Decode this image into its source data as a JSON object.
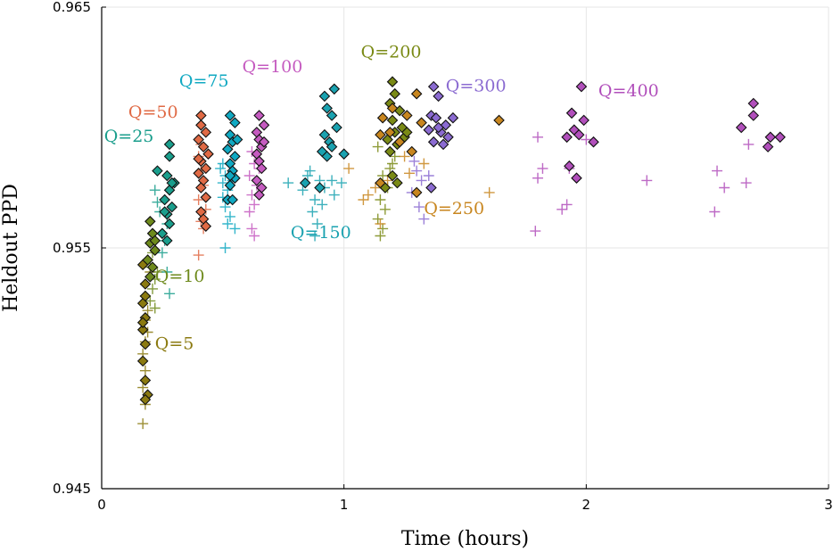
{
  "chart_data": {
    "type": "scatter",
    "title": "",
    "xlabel": "Time (hours)",
    "ylabel": "Heldout PPD",
    "xlim": [
      0,
      3
    ],
    "ylim": [
      0.945,
      0.965
    ],
    "x_ticks": [
      "0",
      "1",
      "2",
      "3"
    ],
    "y_ticks": [
      "0.945",
      "0.955",
      "0.965"
    ],
    "grid": true,
    "legend": "none (inline Q labels)",
    "marker_legend": {
      "diamond": "outlined diamond markers",
      "plus": "plus markers"
    },
    "series": [
      {
        "name": "Q=5",
        "color": "#8b7a10",
        "diamonds": [
          [
            0.17,
            0.9543
          ],
          [
            0.18,
            0.9535
          ],
          [
            0.17,
            0.9527
          ],
          [
            0.18,
            0.9521
          ],
          [
            0.17,
            0.9516
          ],
          [
            0.18,
            0.951
          ],
          [
            0.17,
            0.9503
          ],
          [
            0.18,
            0.9495
          ],
          [
            0.19,
            0.9489
          ],
          [
            0.18,
            0.9487
          ],
          [
            0.18,
            0.953
          ],
          [
            0.17,
            0.9519
          ]
        ],
        "plus": [
          [
            0.17,
            0.9477
          ],
          [
            0.18,
            0.9485
          ],
          [
            0.17,
            0.9492
          ],
          [
            0.18,
            0.9499
          ],
          [
            0.17,
            0.9506
          ],
          [
            0.18,
            0.9511
          ],
          [
            0.19,
            0.9515
          ],
          [
            0.18,
            0.952
          ],
          [
            0.19,
            0.9524
          ],
          [
            0.18,
            0.953
          ],
          [
            0.2,
            0.954
          ],
          [
            0.19,
            0.9545
          ]
        ]
      },
      {
        "name": "Q=10",
        "color": "#6e8a1c",
        "diamonds": [
          [
            0.2,
            0.9561
          ],
          [
            0.21,
            0.9556
          ],
          [
            0.2,
            0.9552
          ],
          [
            0.22,
            0.9549
          ],
          [
            0.19,
            0.9545
          ],
          [
            0.21,
            0.9542
          ],
          [
            0.2,
            0.9538
          ],
          [
            0.22,
            0.9553
          ]
        ],
        "plus": [
          [
            0.21,
            0.9548
          ],
          [
            0.2,
            0.9542
          ],
          [
            0.22,
            0.9537
          ],
          [
            0.21,
            0.9533
          ],
          [
            0.23,
            0.954
          ],
          [
            0.22,
            0.9525
          ],
          [
            0.2,
            0.9528
          ]
        ]
      },
      {
        "name": "Q=25",
        "color": "#1a9e8c",
        "diamonds": [
          [
            0.28,
            0.9593
          ],
          [
            0.28,
            0.9588
          ],
          [
            0.23,
            0.9582
          ],
          [
            0.27,
            0.958
          ],
          [
            0.3,
            0.9577
          ],
          [
            0.28,
            0.9574
          ],
          [
            0.26,
            0.957
          ],
          [
            0.29,
            0.9567
          ],
          [
            0.27,
            0.9564
          ],
          [
            0.28,
            0.956
          ],
          [
            0.25,
            0.9556
          ],
          [
            0.27,
            0.9553
          ],
          [
            0.29,
            0.9577
          ],
          [
            0.26,
            0.9565
          ]
        ],
        "plus": [
          [
            0.22,
            0.9574
          ],
          [
            0.26,
            0.957
          ],
          [
            0.24,
            0.9565
          ],
          [
            0.27,
            0.956
          ],
          [
            0.26,
            0.9553
          ],
          [
            0.25,
            0.9548
          ],
          [
            0.27,
            0.954
          ],
          [
            0.28,
            0.9531
          ],
          [
            0.23,
            0.9569
          ]
        ]
      },
      {
        "name": "Q=50",
        "color": "#e06a45",
        "diamonds": [
          [
            0.41,
            0.9605
          ],
          [
            0.41,
            0.9601
          ],
          [
            0.43,
            0.9598
          ],
          [
            0.4,
            0.9595
          ],
          [
            0.42,
            0.9592
          ],
          [
            0.44,
            0.9589
          ],
          [
            0.41,
            0.9586
          ],
          [
            0.43,
            0.9583
          ],
          [
            0.4,
            0.9581
          ],
          [
            0.42,
            0.9578
          ],
          [
            0.41,
            0.9575
          ],
          [
            0.43,
            0.9571
          ],
          [
            0.41,
            0.9565
          ],
          [
            0.42,
            0.9562
          ],
          [
            0.43,
            0.9559
          ],
          [
            0.4,
            0.9587
          ]
        ],
        "plus": [
          [
            0.4,
            0.9588
          ],
          [
            0.41,
            0.9582
          ],
          [
            0.42,
            0.9576
          ],
          [
            0.4,
            0.957
          ],
          [
            0.43,
            0.9566
          ],
          [
            0.41,
            0.9561
          ],
          [
            0.42,
            0.9558
          ],
          [
            0.4,
            0.9547
          ],
          [
            0.41,
            0.9593
          ]
        ]
      },
      {
        "name": "Q=75",
        "color": "#11a9c2",
        "diamonds": [
          [
            0.53,
            0.9605
          ],
          [
            0.55,
            0.9602
          ],
          [
            0.53,
            0.9597
          ],
          [
            0.54,
            0.9594
          ],
          [
            0.52,
            0.9591
          ],
          [
            0.55,
            0.9588
          ],
          [
            0.53,
            0.9585
          ],
          [
            0.54,
            0.9582
          ],
          [
            0.55,
            0.9579
          ],
          [
            0.53,
            0.9576
          ],
          [
            0.52,
            0.957
          ],
          [
            0.54,
            0.957
          ],
          [
            0.53,
            0.958
          ],
          [
            0.56,
            0.9595
          ]
        ],
        "plus": [
          [
            0.49,
            0.9583
          ],
          [
            0.51,
            0.958
          ],
          [
            0.5,
            0.9577
          ],
          [
            0.52,
            0.9574
          ],
          [
            0.5,
            0.9571
          ],
          [
            0.51,
            0.9567
          ],
          [
            0.53,
            0.9563
          ],
          [
            0.55,
            0.9558
          ],
          [
            0.52,
            0.956
          ],
          [
            0.51,
            0.955
          ],
          [
            0.5,
            0.9585
          ],
          [
            0.54,
            0.9578
          ]
        ]
      },
      {
        "name": "Q=100",
        "color": "#c55bc0",
        "diamonds": [
          [
            0.65,
            0.9605
          ],
          [
            0.67,
            0.9601
          ],
          [
            0.64,
            0.9598
          ],
          [
            0.65,
            0.9595
          ],
          [
            0.66,
            0.9592
          ],
          [
            0.64,
            0.9589
          ],
          [
            0.65,
            0.9586
          ],
          [
            0.66,
            0.9583
          ],
          [
            0.64,
            0.9578
          ],
          [
            0.66,
            0.9575
          ],
          [
            0.65,
            0.9572
          ],
          [
            0.67,
            0.9594
          ]
        ],
        "plus": [
          [
            0.62,
            0.959
          ],
          [
            0.63,
            0.9585
          ],
          [
            0.61,
            0.958
          ],
          [
            0.64,
            0.9576
          ],
          [
            0.62,
            0.9572
          ],
          [
            0.63,
            0.9568
          ],
          [
            0.61,
            0.9565
          ],
          [
            0.62,
            0.9558
          ],
          [
            0.63,
            0.9555
          ],
          [
            0.65,
            0.9583
          ]
        ]
      },
      {
        "name": "Q=150",
        "color": "#1aa2b0",
        "diamonds": [
          [
            0.92,
            0.9613
          ],
          [
            0.96,
            0.9616
          ],
          [
            0.93,
            0.9608
          ],
          [
            0.95,
            0.9605
          ],
          [
            0.92,
            0.9597
          ],
          [
            0.94,
            0.9594
          ],
          [
            0.91,
            0.959
          ],
          [
            0.95,
            0.9592
          ],
          [
            0.93,
            0.9588
          ],
          [
            1.0,
            0.9589
          ],
          [
            0.84,
            0.9577
          ],
          [
            0.9,
            0.9575
          ],
          [
            0.97,
            0.96
          ]
        ],
        "plus": [
          [
            0.77,
            0.9577
          ],
          [
            0.86,
            0.9582
          ],
          [
            0.9,
            0.9578
          ],
          [
            0.83,
            0.9574
          ],
          [
            0.88,
            0.957
          ],
          [
            0.92,
            0.9575
          ],
          [
            0.95,
            0.9578
          ],
          [
            0.87,
            0.9565
          ],
          [
            0.89,
            0.956
          ],
          [
            0.88,
            0.9555
          ],
          [
            0.96,
            0.9572
          ],
          [
            0.99,
            0.9577
          ],
          [
            0.85,
            0.958
          ],
          [
            0.91,
            0.9568
          ]
        ]
      },
      {
        "name": "Q=200",
        "color": "#7a8a15",
        "diamonds": [
          [
            1.2,
            0.9619
          ],
          [
            1.21,
            0.9614
          ],
          [
            1.19,
            0.961
          ],
          [
            1.23,
            0.9607
          ],
          [
            1.2,
            0.9603
          ],
          [
            1.24,
            0.96
          ],
          [
            1.21,
            0.9598
          ],
          [
            1.18,
            0.9595
          ],
          [
            1.22,
            0.9593
          ],
          [
            1.19,
            0.959
          ],
          [
            1.25,
            0.9596
          ],
          [
            1.2,
            0.958
          ],
          [
            1.22,
            0.9577
          ],
          [
            1.17,
            0.9575
          ],
          [
            1.26,
            0.9598
          ]
        ],
        "plus": [
          [
            1.14,
            0.9592
          ],
          [
            1.2,
            0.9585
          ],
          [
            1.16,
            0.958
          ],
          [
            1.18,
            0.9575
          ],
          [
            1.15,
            0.957
          ],
          [
            1.17,
            0.9566
          ],
          [
            1.14,
            0.9562
          ],
          [
            1.16,
            0.9558
          ],
          [
            1.15,
            0.9555
          ],
          [
            1.19,
            0.9583
          ],
          [
            1.21,
            0.9588
          ]
        ]
      },
      {
        "name": "Q=250",
        "color": "#c8861f",
        "diamonds": [
          [
            1.16,
            0.9604
          ],
          [
            1.2,
            0.9608
          ],
          [
            1.26,
            0.9605
          ],
          [
            1.3,
            0.9614
          ],
          [
            1.15,
            0.9597
          ],
          [
            1.23,
            0.9594
          ],
          [
            1.28,
            0.959
          ],
          [
            1.32,
            0.9602
          ],
          [
            1.64,
            0.9603
          ],
          [
            1.3,
            0.9573
          ],
          [
            1.15,
            0.9577
          ],
          [
            1.19,
            0.9598
          ]
        ],
        "plus": [
          [
            1.08,
            0.957
          ],
          [
            1.1,
            0.9572
          ],
          [
            1.13,
            0.9575
          ],
          [
            1.18,
            0.9578
          ],
          [
            1.27,
            0.9581
          ],
          [
            1.33,
            0.9585
          ],
          [
            1.6,
            0.9573
          ],
          [
            1.15,
            0.956
          ],
          [
            1.25,
            0.9588
          ],
          [
            1.02,
            0.9583
          ]
        ]
      },
      {
        "name": "Q=300",
        "color": "#8b6bd1",
        "diamonds": [
          [
            1.37,
            0.9617
          ],
          [
            1.39,
            0.9613
          ],
          [
            1.36,
            0.9605
          ],
          [
            1.42,
            0.9601
          ],
          [
            1.38,
            0.9604
          ],
          [
            1.45,
            0.9604
          ],
          [
            1.35,
            0.9599
          ],
          [
            1.4,
            0.9598
          ],
          [
            1.43,
            0.9596
          ],
          [
            1.37,
            0.9594
          ],
          [
            1.41,
            0.9593
          ],
          [
            1.39,
            0.96
          ],
          [
            1.36,
            0.9575
          ]
        ],
        "plus": [
          [
            1.3,
            0.9582
          ],
          [
            1.32,
            0.9578
          ],
          [
            1.28,
            0.9573
          ],
          [
            1.31,
            0.9567
          ],
          [
            1.33,
            0.9562
          ],
          [
            1.29,
            0.9586
          ],
          [
            1.35,
            0.958
          ]
        ]
      },
      {
        "name": "Q=400",
        "color": "#b14fbb",
        "diamonds": [
          [
            1.98,
            0.9617
          ],
          [
            1.94,
            0.9606
          ],
          [
            1.99,
            0.9603
          ],
          [
            1.95,
            0.9599
          ],
          [
            1.92,
            0.9596
          ],
          [
            1.97,
            0.9597
          ],
          [
            2.03,
            0.9594
          ],
          [
            1.93,
            0.9584
          ],
          [
            1.96,
            0.9579
          ],
          [
            2.69,
            0.961
          ],
          [
            2.69,
            0.9605
          ],
          [
            2.64,
            0.96
          ],
          [
            2.76,
            0.9596
          ],
          [
            2.8,
            0.9596
          ],
          [
            2.75,
            0.9592
          ]
        ],
        "plus": [
          [
            1.8,
            0.9596
          ],
          [
            1.82,
            0.9583
          ],
          [
            1.8,
            0.9579
          ],
          [
            1.93,
            0.9583
          ],
          [
            1.92,
            0.9568
          ],
          [
            1.9,
            0.9566
          ],
          [
            2.0,
            0.9595
          ],
          [
            1.79,
            0.9557
          ],
          [
            2.25,
            0.9578
          ],
          [
            2.54,
            0.9582
          ],
          [
            2.57,
            0.9575
          ],
          [
            2.53,
            0.9565
          ],
          [
            2.67,
            0.9593
          ],
          [
            2.66,
            0.9577
          ]
        ]
      }
    ],
    "annotations": [
      {
        "text": "Q=5",
        "x": 0.22,
        "y": 0.9508,
        "color": "#8b7a10"
      },
      {
        "text": "Q=10",
        "x": 0.22,
        "y": 0.9536,
        "color": "#6e8a1c"
      },
      {
        "text": "Q=25",
        "x": 0.01,
        "y": 0.9594,
        "color": "#1a9e8c"
      },
      {
        "text": "Q=50",
        "x": 0.11,
        "y": 0.9604,
        "color": "#e06a45"
      },
      {
        "text": "Q=75",
        "x": 0.32,
        "y": 0.9617,
        "color": "#11a9c2"
      },
      {
        "text": "Q=100",
        "x": 0.58,
        "y": 0.9623,
        "color": "#c55bc0"
      },
      {
        "text": "Q=150",
        "x": 0.78,
        "y": 0.9554,
        "color": "#1aa2b0"
      },
      {
        "text": "Q=200",
        "x": 1.07,
        "y": 0.9629,
        "color": "#7a8a15"
      },
      {
        "text": "Q=250",
        "x": 1.33,
        "y": 0.9564,
        "color": "#c8861f"
      },
      {
        "text": "Q=300",
        "x": 1.42,
        "y": 0.9615,
        "color": "#8b6bd1"
      },
      {
        "text": "Q=400",
        "x": 2.05,
        "y": 0.9613,
        "color": "#b14fbb"
      }
    ]
  }
}
